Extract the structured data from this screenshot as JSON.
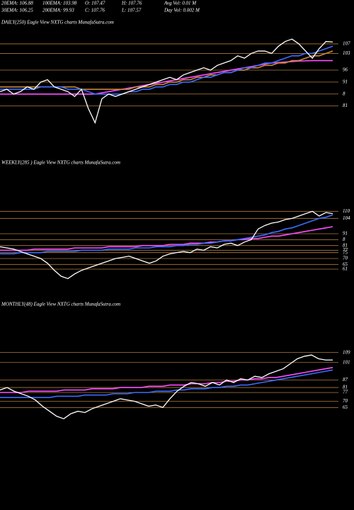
{
  "header": {
    "rows": [
      [
        "20EMA: 106.88",
        "100EMA: 103.98",
        "O: 107.47",
        "H: 107.76",
        "Avg Vol: 0.01  M"
      ],
      [
        "30EMA: 106.25",
        "200EMA: 99.93",
        "C: 107.76",
        "L: 107.57",
        "Day Vol: 0.002  M"
      ]
    ]
  },
  "chart_data": [
    {
      "type": "line",
      "title": "DAILY(250) Eagle  View  NXTG charts MunafaSutra.com",
      "grid": true,
      "ylim": [
        72,
        113.5
      ],
      "yticks": [
        107,
        103,
        96,
        91,
        {
          "value": 86,
          "label": "8"
        },
        81
      ],
      "series": [
        {
          "color": "#ff4dff",
          "values": [
            86,
            86,
            86,
            86,
            86,
            86,
            86,
            86,
            86,
            86,
            86,
            86,
            86,
            86,
            86,
            86.5,
            87,
            87.5,
            88,
            88.5,
            89,
            89.5,
            90,
            90.5,
            91,
            91.5,
            92,
            92.5,
            93,
            93.5,
            94,
            94.5,
            95,
            95.5,
            96,
            96.5,
            97,
            97.5,
            98,
            98.5,
            99,
            99.2,
            99.4,
            99.6,
            99.8,
            99.9,
            100,
            100,
            100,
            100
          ]
        },
        {
          "color": "#c8873a",
          "values": [
            89,
            89,
            89,
            89,
            89,
            89,
            89,
            89,
            89,
            89,
            89,
            89,
            88,
            88,
            88,
            88,
            88,
            88,
            88,
            88,
            89,
            89,
            89,
            90,
            90,
            91,
            91,
            92,
            92,
            93,
            93,
            94,
            94,
            95,
            95,
            96,
            96,
            97,
            97,
            98,
            98,
            99,
            99,
            100,
            100,
            101,
            102,
            102,
            103,
            104
          ]
        },
        {
          "color": "#3a6cff",
          "values": [
            88,
            88,
            88,
            88,
            88,
            88,
            89,
            89,
            89,
            89,
            88,
            88,
            88,
            87,
            86,
            86,
            86,
            86,
            86,
            87,
            87,
            88,
            88,
            89,
            89,
            90,
            90,
            91,
            91,
            92,
            93,
            93,
            94,
            95,
            95,
            96,
            97,
            97,
            98,
            99,
            99,
            100,
            101,
            102,
            102,
            103,
            103,
            104,
            105,
            106
          ]
        },
        {
          "color": "#ffffff",
          "values": [
            87,
            88,
            86,
            87,
            89,
            88,
            91,
            92,
            89,
            88,
            87,
            85,
            88,
            80,
            74,
            84,
            86,
            85,
            86,
            87,
            88,
            89,
            90,
            91,
            92,
            93,
            92,
            94,
            95,
            96,
            97,
            96,
            98,
            99,
            100,
            102,
            101,
            103,
            104,
            104,
            103,
            106,
            108,
            109,
            107,
            104,
            101,
            105,
            108,
            107.8
          ]
        }
      ]
    },
    {
      "type": "line",
      "title": "WEEKLY(285                 ) Eagle  View  NXTG charts MunafaSutra.com",
      "grid": true,
      "ylim": [
        49,
        121
      ],
      "yticks": [
        110,
        104,
        91,
        {
          "value": 86,
          "label": "8"
        },
        81,
        77,
        75,
        70,
        65,
        61
      ],
      "series": [
        {
          "color": "#ff4dff",
          "values": [
            77,
            77,
            77,
            77,
            77,
            78,
            78,
            78,
            78,
            78,
            78,
            79,
            79,
            79,
            79,
            79,
            80,
            80,
            80,
            80,
            80,
            81,
            81,
            81,
            81,
            82,
            82,
            82,
            83,
            83,
            83,
            84,
            84,
            85,
            85,
            86,
            86,
            87,
            87,
            88,
            89,
            89,
            90,
            91,
            92,
            93,
            94,
            95,
            96,
            97
          ]
        },
        {
          "color": "#3a6cff",
          "values": [
            74,
            74,
            74,
            75,
            75,
            75,
            75,
            76,
            76,
            76,
            76,
            76,
            77,
            77,
            77,
            77,
            78,
            78,
            78,
            78,
            79,
            79,
            79,
            80,
            80,
            80,
            81,
            81,
            82,
            82,
            83,
            83,
            84,
            85,
            85,
            86,
            87,
            88,
            89,
            90,
            92,
            93,
            95,
            96,
            98,
            100,
            102,
            104,
            105,
            107
          ]
        },
        {
          "color": "#ffffff",
          "values": [
            80,
            79,
            78,
            76,
            74,
            72,
            70,
            66,
            60,
            55,
            53,
            57,
            60,
            62,
            64,
            66,
            68,
            70,
            71,
            72,
            70,
            68,
            66,
            68,
            72,
            74,
            75,
            76,
            75,
            78,
            77,
            80,
            79,
            82,
            83,
            81,
            84,
            86,
            95,
            98,
            100,
            101,
            103,
            104,
            106,
            108,
            110,
            106,
            109,
            108
          ]
        }
      ]
    },
    {
      "type": "line",
      "title": "MONTHLY(48) Eagle  View  NXTG charts MunafaSutra.com",
      "grid": true,
      "ylim": [
        51,
        119
      ],
      "yticks": [
        109,
        101,
        87,
        81,
        77,
        70,
        65
      ],
      "series": [
        {
          "color": "#ff4dff",
          "values": [
            77,
            77,
            77,
            77,
            78,
            78,
            78,
            78,
            78,
            79,
            79,
            79,
            79,
            80,
            80,
            80,
            80,
            81,
            81,
            81,
            81,
            82,
            82,
            82,
            83,
            83,
            83,
            84,
            84,
            84,
            85,
            85,
            86,
            86,
            87,
            87,
            88,
            88,
            89,
            89,
            90,
            91,
            92,
            93,
            94,
            95,
            96,
            97
          ]
        },
        {
          "color": "#3a6cff",
          "values": [
            73,
            73,
            73,
            73,
            73,
            73,
            73,
            73,
            74,
            74,
            74,
            74,
            75,
            75,
            75,
            75,
            76,
            76,
            76,
            77,
            77,
            77,
            78,
            78,
            78,
            79,
            79,
            80,
            80,
            80,
            81,
            81,
            82,
            82,
            83,
            83,
            84,
            85,
            86,
            87,
            88,
            89,
            90,
            91,
            92,
            93,
            94,
            95
          ]
        },
        {
          "color": "#ffffff",
          "values": [
            79,
            81,
            78,
            76,
            74,
            71,
            66,
            62,
            58,
            56,
            60,
            62,
            61,
            64,
            66,
            68,
            70,
            72,
            71,
            70,
            68,
            66,
            67,
            65,
            72,
            78,
            82,
            85,
            84,
            82,
            85,
            83,
            87,
            85,
            88,
            87,
            90,
            89,
            92,
            94,
            96,
            100,
            104,
            106,
            107,
            104,
            103,
            103
          ]
        }
      ]
    }
  ]
}
